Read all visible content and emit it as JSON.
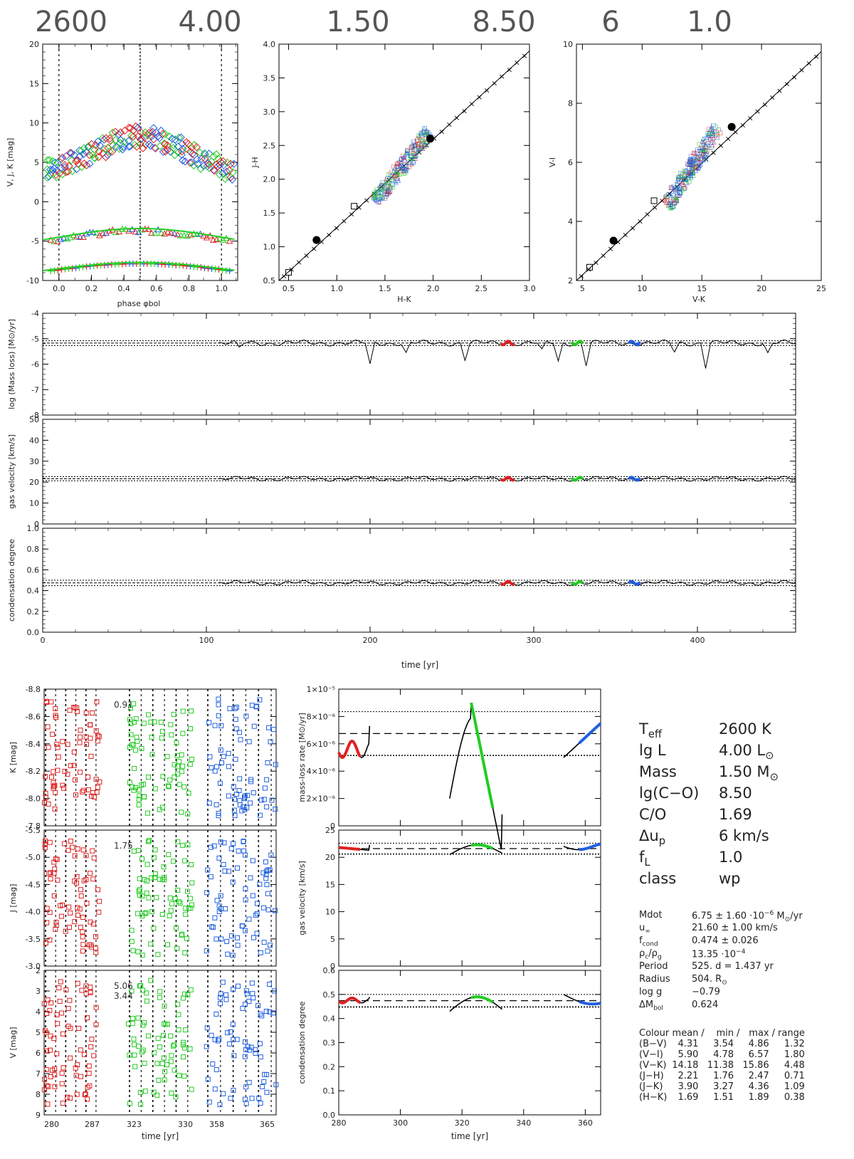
{
  "header": {
    "values": [
      "2600",
      "4.00",
      "1.50",
      "8.50",
      "6",
      "1.0"
    ]
  },
  "colors": {
    "red": "#e02020",
    "green": "#22cc22",
    "blue": "#2060e0",
    "black": "#000000"
  },
  "chart_data": [
    {
      "id": "lightcurve",
      "type": "scatter",
      "xlabel": "phase φbol",
      "ylabel": "V, J, K  [mag]",
      "xlim": [
        -0.1,
        1.1
      ],
      "ylim": [
        20,
        -10
      ],
      "xticks": [
        "0.0",
        "0.2",
        "0.4",
        "0.6",
        "0.8",
        "1.0"
      ],
      "yticks": [
        "-10",
        "-5",
        "0",
        "5",
        "10",
        "15",
        "20"
      ],
      "series": [
        {
          "band": "K",
          "x": [
            0.0,
            0.1,
            0.2,
            0.3,
            0.4,
            0.5,
            0.6,
            0.7,
            0.8,
            0.9,
            1.0
          ],
          "y": [
            -8.7,
            -8.5,
            -8.3,
            -8.1,
            -8.0,
            -7.9,
            -8.0,
            -8.2,
            -8.4,
            -8.6,
            -8.7
          ]
        },
        {
          "band": "J",
          "x": [
            0.0,
            0.1,
            0.2,
            0.3,
            0.4,
            0.5,
            0.6,
            0.7,
            0.8,
            0.9,
            1.0
          ],
          "y": [
            -5.0,
            -4.8,
            -4.5,
            -4.2,
            -4.0,
            -3.8,
            -3.9,
            -4.2,
            -4.5,
            -4.8,
            -5.0
          ]
        },
        {
          "band": "V",
          "x": [
            0.0,
            0.1,
            0.2,
            0.3,
            0.4,
            0.5,
            0.6,
            0.7,
            0.8,
            0.9,
            1.0
          ],
          "y": [
            4.0,
            3.8,
            4.5,
            5.8,
            6.6,
            7.0,
            6.6,
            6.0,
            5.2,
            4.5,
            4.0
          ]
        }
      ]
    },
    {
      "id": "two-colour-JH-HK",
      "type": "scatter",
      "xlabel": "H-K",
      "ylabel": "J-H",
      "xlim": [
        0.4,
        3.0
      ],
      "ylim": [
        0.5,
        4.0
      ],
      "xticks": [
        "0.5",
        "1.0",
        "1.5",
        "2.0",
        "2.5",
        "3.0"
      ],
      "yticks": [
        "0.5",
        "1.0",
        "1.5",
        "2.0",
        "2.5",
        "3.0",
        "3.5",
        "4.0"
      ],
      "reference_line": {
        "x": [
          0.4,
          3.0
        ],
        "y": [
          0.5,
          3.9
        ]
      },
      "filled_points": [
        {
          "x": 0.79,
          "y": 1.1
        },
        {
          "x": 1.97,
          "y": 2.6
        }
      ],
      "open_squares": [
        {
          "x": 0.5,
          "y": 0.62
        },
        {
          "x": 1.18,
          "y": 1.6
        }
      ],
      "cloud": {
        "x_center": 1.68,
        "y_center": 2.2
      }
    },
    {
      "id": "two-colour-VI-VK",
      "type": "scatter",
      "xlabel": "V-K",
      "ylabel": "V-I",
      "xlim": [
        4.5,
        25
      ],
      "ylim": [
        2,
        10
      ],
      "xticks": [
        "5",
        "10",
        "15",
        "20",
        "25"
      ],
      "yticks": [
        "2",
        "4",
        "6",
        "8",
        "10"
      ],
      "reference_line": {
        "x": [
          4.5,
          25
        ],
        "y": [
          2.0,
          9.75
        ]
      },
      "filled_points": [
        {
          "x": 7.6,
          "y": 3.35
        },
        {
          "x": 17.5,
          "y": 7.2
        }
      ],
      "open_squares": [
        {
          "x": 5.6,
          "y": 2.45
        },
        {
          "x": 11.0,
          "y": 4.7
        }
      ],
      "cloud": {
        "x_center": 14.2,
        "y_center": 5.9
      }
    },
    {
      "id": "massloss-time",
      "type": "line",
      "ylabel": "log (Mass loss) [M⊙/yr]",
      "xlim": [
        0,
        460
      ],
      "ylim": [
        -8,
        -4
      ],
      "yticks": [
        "-8",
        "-7",
        "-6",
        "-5",
        "-4"
      ],
      "mean": -5.17,
      "band": [
        -5.27,
        -5.08
      ],
      "dips": [
        {
          "x": 120,
          "y": -5.4
        },
        {
          "x": 200,
          "y": -6.05
        },
        {
          "x": 222,
          "y": -5.6
        },
        {
          "x": 258,
          "y": -5.8
        },
        {
          "x": 305,
          "y": -5.5
        },
        {
          "x": 315,
          "y": -5.9
        },
        {
          "x": 332,
          "y": -6.0
        },
        {
          "x": 386,
          "y": -5.5
        },
        {
          "x": 405,
          "y": -6.1
        },
        {
          "x": 443,
          "y": -5.6
        }
      ],
      "highlights": [
        {
          "x": [
            280,
            288
          ],
          "color": "red"
        },
        {
          "x": [
            323,
            330
          ],
          "color": "green"
        },
        {
          "x": [
            358,
            365
          ],
          "color": "blue"
        }
      ]
    },
    {
      "id": "velocity-time",
      "type": "line",
      "ylabel": "gas velocity [km/s]",
      "xlim": [
        0,
        460
      ],
      "ylim": [
        0,
        50
      ],
      "yticks": [
        "0",
        "10",
        "20",
        "30",
        "40",
        "50"
      ],
      "mean": 21.6,
      "band": [
        20.6,
        22.6
      ]
    },
    {
      "id": "condensation-time",
      "type": "line",
      "ylabel": "condensation degree",
      "xlabel": "time [yr]",
      "xlim": [
        0,
        460
      ],
      "ylim": [
        0,
        1
      ],
      "xticks": [
        "0",
        "100",
        "200",
        "300",
        "400"
      ],
      "yticks": [
        "0.0",
        "0.2",
        "0.4",
        "0.6",
        "0.8",
        "1.0"
      ],
      "mean": 0.474,
      "band": [
        0.448,
        0.5
      ]
    },
    {
      "id": "K-zoom",
      "type": "scatter",
      "ylabel": "K [mag]",
      "ylim": [
        -7.8,
        -8.8
      ],
      "yticks": [
        "-8.8",
        "-8.6",
        "-8.4",
        "-8.2",
        "-8.0",
        "-7.8"
      ],
      "amplitude_label": "0.91"
    },
    {
      "id": "J-zoom",
      "type": "scatter",
      "ylabel": "J [mag]",
      "ylim": [
        -3.0,
        -5.5
      ],
      "yticks": [
        "-5.5",
        "-5.0",
        "-4.5",
        "-4.0",
        "-3.5",
        "-3.0"
      ],
      "amplitude_label": "1.75"
    },
    {
      "id": "V-zoom",
      "type": "scatter",
      "ylabel": "V [mag]",
      "xlabel": "time [yr]",
      "ylim": [
        9,
        2
      ],
      "yticks": [
        "2",
        "3",
        "4",
        "5",
        "6",
        "7",
        "8",
        "9"
      ],
      "xticks": [
        "280",
        "287",
        "323",
        "330",
        "358",
        "365"
      ],
      "amplitude_labels": [
        "5.06",
        "3.44"
      ]
    },
    {
      "id": "massloss-zoom",
      "type": "line",
      "ylabel": "mass-loss rate [M⊙/yr]",
      "ylim": [
        0,
        10
      ],
      "yticks": [
        "0",
        "2×10⁻⁶",
        "4×10⁻⁶",
        "6×10⁻⁶",
        "8×10⁻⁶",
        "1×10⁻⁵"
      ],
      "mean": 6.75,
      "band": [
        5.15,
        8.35
      ]
    },
    {
      "id": "velocity-zoom",
      "type": "line",
      "ylabel": "gas velocity [km/s]",
      "ylim": [
        0,
        25
      ],
      "yticks": [
        "0",
        "5",
        "10",
        "15",
        "20",
        "25"
      ],
      "mean": 21.6,
      "band": [
        20.6,
        22.6
      ]
    },
    {
      "id": "condensation-zoom",
      "type": "line",
      "ylabel": "condensation degree",
      "xlabel": "time [yr]",
      "xlim": [
        280,
        365
      ],
      "ylim": [
        0,
        0.6
      ],
      "xticks": [
        "280",
        "300",
        "320",
        "340",
        "360"
      ],
      "yticks": [
        "0.0",
        "0.1",
        "0.2",
        "0.3",
        "0.4",
        "0.5",
        "0.6"
      ],
      "mean": 0.474,
      "band": [
        0.448,
        0.5
      ]
    }
  ],
  "params": [
    {
      "key": "T<sub>eff</sub>",
      "value": "2600 K"
    },
    {
      "key": "lg L",
      "value": "4.00 L<sub>⊙</sub>"
    },
    {
      "key": "Mass",
      "value": "1.50 M<sub>⊙</sub>"
    },
    {
      "key": "lg(C−O)",
      "value": "8.50"
    },
    {
      "key": "C/O",
      "value": "1.69"
    },
    {
      "key": "Δu<sub>p</sub>",
      "value": "6 km/s"
    },
    {
      "key": "f<sub>L</sub>",
      "value": "1.0"
    },
    {
      "key": "class",
      "value": "wp"
    }
  ],
  "stats": [
    {
      "key": "Mdot",
      "value": "6.75 ± 1.60 ·10<sup>−6</sup> M<sub>⊙</sub>/yr"
    },
    {
      "key": "u<sub>∞</sub>",
      "value": "21.60 ± 1.00 km/s"
    },
    {
      "key": "f<sub>cond</sub>",
      "value": "0.474 ± 0.026"
    },
    {
      "key": "ρ<sub>c</sub>/ρ<sub>g</sub>",
      "value": "13.35 ·10<sup>−4</sup>"
    },
    {
      "key": "Period",
      "value": "525. d  = 1.437 yr"
    },
    {
      "key": "Radius",
      "value": "504. R<sub>⊙</sub>"
    },
    {
      "key": "log g",
      "value": "−0.79"
    },
    {
      "key": "ΔM<sub>bol</sub>",
      "value": "0.624"
    }
  ],
  "colour_table": {
    "header": [
      "Colour",
      "mean",
      "/",
      "min",
      "/",
      "max",
      "/",
      "range"
    ],
    "rows": [
      [
        "(B−V)",
        "4.31",
        "3.54",
        "4.86",
        "1.32"
      ],
      [
        "(V−I)",
        "5.90",
        "4.78",
        "6.57",
        "1.80"
      ],
      [
        "(V−K)",
        "14.18",
        "11.38",
        "15.86",
        "4.48"
      ],
      [
        "(J−H)",
        "2.21",
        "1.76",
        "2.47",
        "0.71"
      ],
      [
        "(J−K)",
        "3.90",
        "3.27",
        "4.36",
        "1.09"
      ],
      [
        "(H−K)",
        "1.69",
        "1.51",
        "1.89",
        "0.38"
      ]
    ]
  }
}
